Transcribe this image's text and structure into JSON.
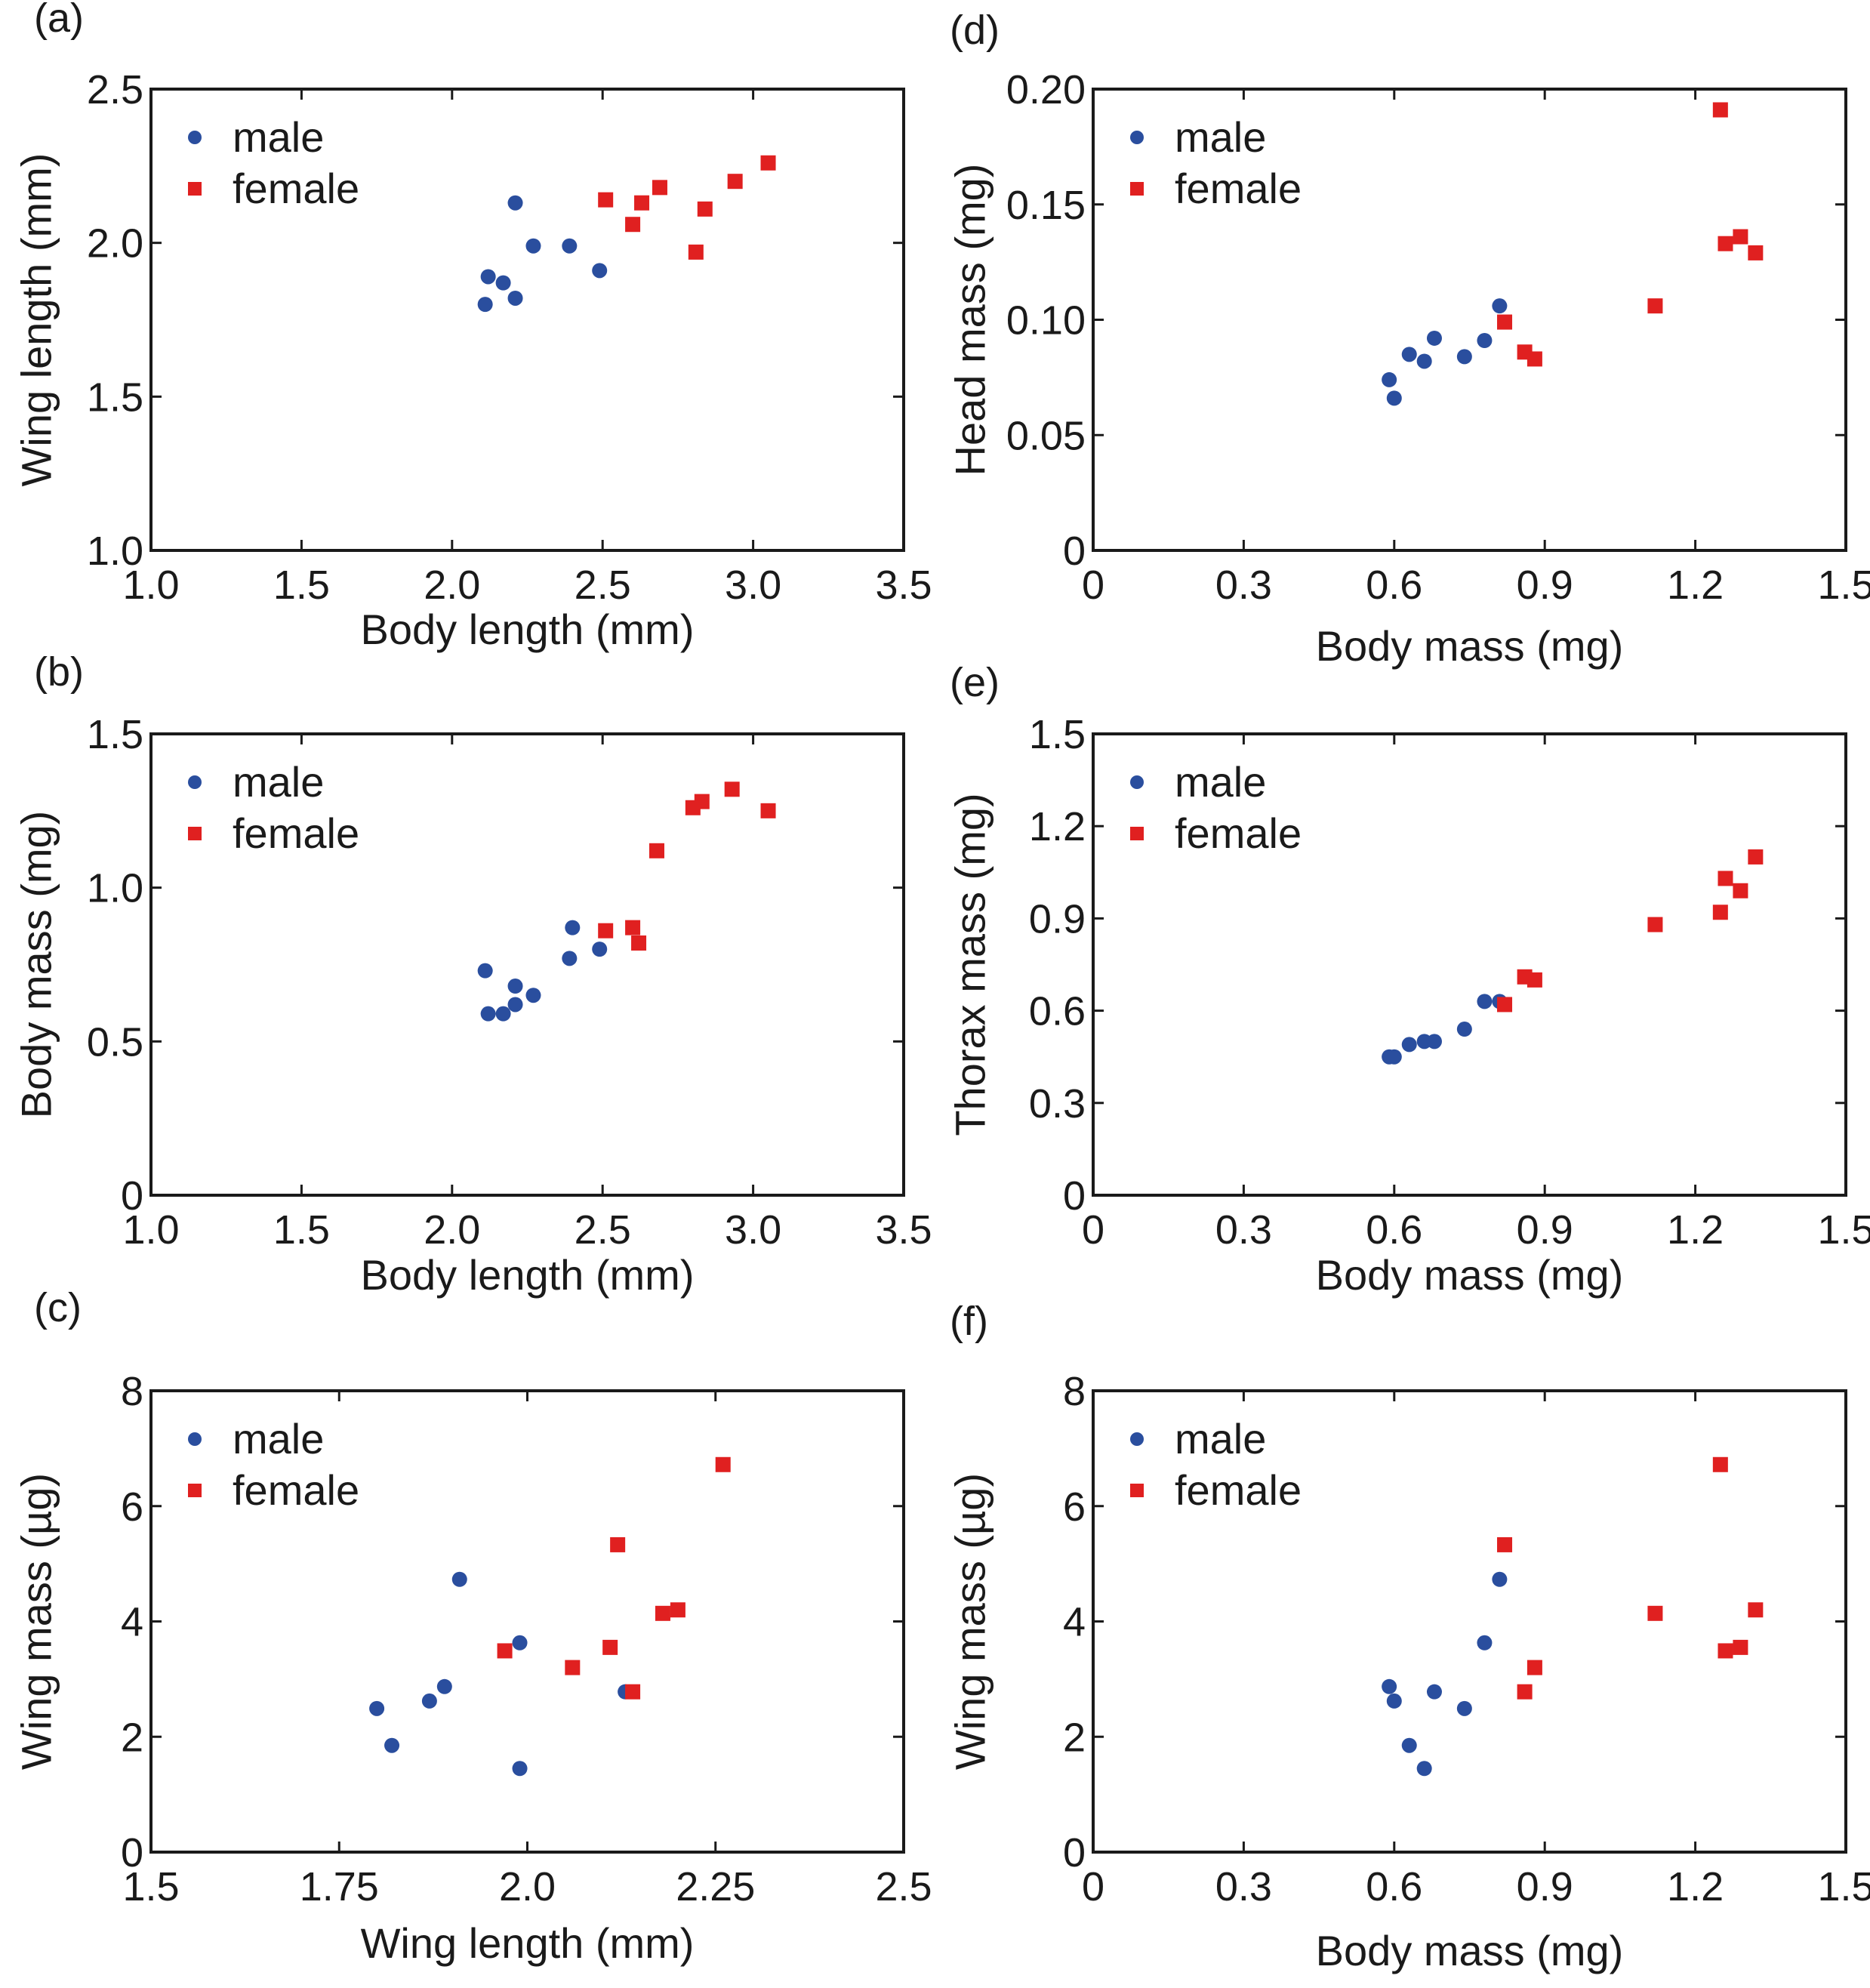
{
  "colors": {
    "male": "#2a4e9e",
    "female": "#e02020",
    "axis": "#1a1a1a"
  },
  "legend": {
    "male": "male",
    "female": "female"
  },
  "chart_data": [
    {
      "id": "a",
      "panel_label": "(a)",
      "type": "scatter",
      "xlabel": "Body length (mm)",
      "ylabel": "Wing length (mm)",
      "xlim": [
        1.0,
        3.5
      ],
      "ylim": [
        1.0,
        2.5
      ],
      "xticks": [
        "1.0",
        "1.5",
        "2.0",
        "2.5",
        "3.0",
        "3.5"
      ],
      "yticks": [
        "1.0",
        "1.5",
        "2.0",
        "2.5"
      ],
      "legend_position": "top-left",
      "series": [
        {
          "name": "male",
          "marker": "circle",
          "points": [
            [
              2.11,
              1.8
            ],
            [
              2.12,
              1.89
            ],
            [
              2.17,
              1.87
            ],
            [
              2.21,
              1.82
            ],
            [
              2.21,
              2.13
            ],
            [
              2.27,
              1.99
            ],
            [
              2.39,
              1.99
            ],
            [
              2.49,
              1.91
            ]
          ]
        },
        {
          "name": "female",
          "marker": "square",
          "points": [
            [
              2.51,
              2.14
            ],
            [
              2.6,
              2.06
            ],
            [
              2.63,
              2.13
            ],
            [
              2.69,
              2.18
            ],
            [
              2.81,
              1.97
            ],
            [
              2.84,
              2.11
            ],
            [
              2.94,
              2.2
            ],
            [
              3.05,
              2.26
            ]
          ]
        }
      ]
    },
    {
      "id": "b",
      "panel_label": "(b)",
      "type": "scatter",
      "xlabel": "Body length (mm)",
      "ylabel": "Body mass (mg)",
      "xlim": [
        1.0,
        3.5
      ],
      "ylim": [
        0,
        1.5
      ],
      "xticks": [
        "1.0",
        "1.5",
        "2.0",
        "2.5",
        "3.0",
        "3.5"
      ],
      "yticks": [
        "0",
        "0.5",
        "1.0",
        "1.5"
      ],
      "legend_position": "top-left",
      "series": [
        {
          "name": "male",
          "marker": "circle",
          "points": [
            [
              2.11,
              0.73
            ],
            [
              2.12,
              0.59
            ],
            [
              2.17,
              0.59
            ],
            [
              2.21,
              0.62
            ],
            [
              2.21,
              0.68
            ],
            [
              2.27,
              0.65
            ],
            [
              2.39,
              0.77
            ],
            [
              2.4,
              0.87
            ],
            [
              2.49,
              0.8
            ]
          ]
        },
        {
          "name": "female",
          "marker": "square",
          "points": [
            [
              2.51,
              0.86
            ],
            [
              2.6,
              0.87
            ],
            [
              2.62,
              0.82
            ],
            [
              2.68,
              1.12
            ],
            [
              2.8,
              1.26
            ],
            [
              2.83,
              1.28
            ],
            [
              2.93,
              1.32
            ],
            [
              3.05,
              1.25
            ]
          ]
        }
      ]
    },
    {
      "id": "c",
      "panel_label": "(c)",
      "type": "scatter",
      "xlabel": "Wing length (mm)",
      "ylabel": "Wing mass (µg)",
      "xlim": [
        1.5,
        2.5
      ],
      "ylim": [
        0,
        8
      ],
      "xticks": [
        "1.5",
        "1.75",
        "2.0",
        "2.25",
        "2.5"
      ],
      "yticks": [
        "0",
        "2",
        "4",
        "6",
        "8"
      ],
      "legend_position": "top-left",
      "series": [
        {
          "name": "male",
          "marker": "circle",
          "points": [
            [
              1.8,
              2.49
            ],
            [
              1.82,
              1.85
            ],
            [
              1.87,
              2.62
            ],
            [
              1.89,
              2.87
            ],
            [
              1.91,
              4.73
            ],
            [
              1.99,
              3.63
            ],
            [
              1.99,
              1.45
            ],
            [
              2.13,
              2.78
            ]
          ]
        },
        {
          "name": "female",
          "marker": "square",
          "points": [
            [
              1.97,
              3.49
            ],
            [
              2.06,
              3.2
            ],
            [
              2.11,
              3.55
            ],
            [
              2.12,
              5.33
            ],
            [
              2.14,
              2.78
            ],
            [
              2.18,
              4.14
            ],
            [
              2.2,
              4.2
            ],
            [
              2.26,
              6.72
            ]
          ]
        }
      ]
    },
    {
      "id": "d",
      "panel_label": "(d)",
      "type": "scatter",
      "xlabel": "Body mass (mg)",
      "ylabel": "Head mass (mg)",
      "xlim": [
        0,
        1.5
      ],
      "ylim": [
        0,
        0.2
      ],
      "xticks": [
        "0",
        "0.3",
        "0.6",
        "0.9",
        "1.2",
        "1.5"
      ],
      "yticks": [
        "0",
        "0.05",
        "0.10",
        "0.15",
        "0.20"
      ],
      "legend_position": "top-left",
      "series": [
        {
          "name": "male",
          "marker": "circle",
          "points": [
            [
              0.59,
              0.074
            ],
            [
              0.6,
              0.066
            ],
            [
              0.63,
              0.085
            ],
            [
              0.66,
              0.082
            ],
            [
              0.68,
              0.092
            ],
            [
              0.74,
              0.084
            ],
            [
              0.78,
              0.091
            ],
            [
              0.81,
              0.106
            ]
          ]
        },
        {
          "name": "female",
          "marker": "square",
          "points": [
            [
              0.82,
              0.099
            ],
            [
              0.86,
              0.086
            ],
            [
              0.88,
              0.083
            ],
            [
              1.12,
              0.106
            ],
            [
              1.25,
              0.191
            ],
            [
              1.26,
              0.133
            ],
            [
              1.29,
              0.136
            ],
            [
              1.32,
              0.129
            ]
          ]
        }
      ]
    },
    {
      "id": "e",
      "panel_label": "(e)",
      "type": "scatter",
      "xlabel": "Body mass (mg)",
      "ylabel": "Thorax mass (mg)",
      "xlim": [
        0,
        1.5
      ],
      "ylim": [
        0,
        1.5
      ],
      "xticks": [
        "0",
        "0.3",
        "0.6",
        "0.9",
        "1.2",
        "1.5"
      ],
      "yticks": [
        "0",
        "0.3",
        "0.6",
        "0.9",
        "1.2",
        "1.5"
      ],
      "legend_position": "top-left",
      "series": [
        {
          "name": "male",
          "marker": "circle",
          "points": [
            [
              0.59,
              0.45
            ],
            [
              0.6,
              0.45
            ],
            [
              0.63,
              0.49
            ],
            [
              0.66,
              0.5
            ],
            [
              0.68,
              0.5
            ],
            [
              0.74,
              0.54
            ],
            [
              0.78,
              0.63
            ],
            [
              0.81,
              0.63
            ]
          ]
        },
        {
          "name": "female",
          "marker": "square",
          "points": [
            [
              0.82,
              0.62
            ],
            [
              0.86,
              0.71
            ],
            [
              0.88,
              0.7
            ],
            [
              1.12,
              0.88
            ],
            [
              1.25,
              0.92
            ],
            [
              1.26,
              1.03
            ],
            [
              1.29,
              0.99
            ],
            [
              1.32,
              1.1
            ]
          ]
        }
      ]
    },
    {
      "id": "f",
      "panel_label": "(f)",
      "type": "scatter",
      "xlabel": "Body mass (mg)",
      "ylabel": "Wing mass (µg)",
      "xlim": [
        0,
        1.5
      ],
      "ylim": [
        0,
        8
      ],
      "xticks": [
        "0",
        "0.3",
        "0.6",
        "0.9",
        "1.2",
        "1.5"
      ],
      "yticks": [
        "0",
        "2",
        "4",
        "6",
        "8"
      ],
      "legend_position": "top-left",
      "series": [
        {
          "name": "male",
          "marker": "circle",
          "points": [
            [
              0.59,
              2.87
            ],
            [
              0.6,
              2.62
            ],
            [
              0.63,
              1.85
            ],
            [
              0.66,
              1.45
            ],
            [
              0.68,
              2.78
            ],
            [
              0.74,
              2.49
            ],
            [
              0.78,
              3.63
            ],
            [
              0.81,
              4.73
            ]
          ]
        },
        {
          "name": "female",
          "marker": "square",
          "points": [
            [
              0.82,
              5.33
            ],
            [
              0.86,
              2.78
            ],
            [
              0.88,
              3.2
            ],
            [
              1.12,
              4.14
            ],
            [
              1.25,
              6.72
            ],
            [
              1.26,
              3.49
            ],
            [
              1.29,
              3.55
            ],
            [
              1.32,
              4.2
            ]
          ]
        }
      ]
    }
  ]
}
